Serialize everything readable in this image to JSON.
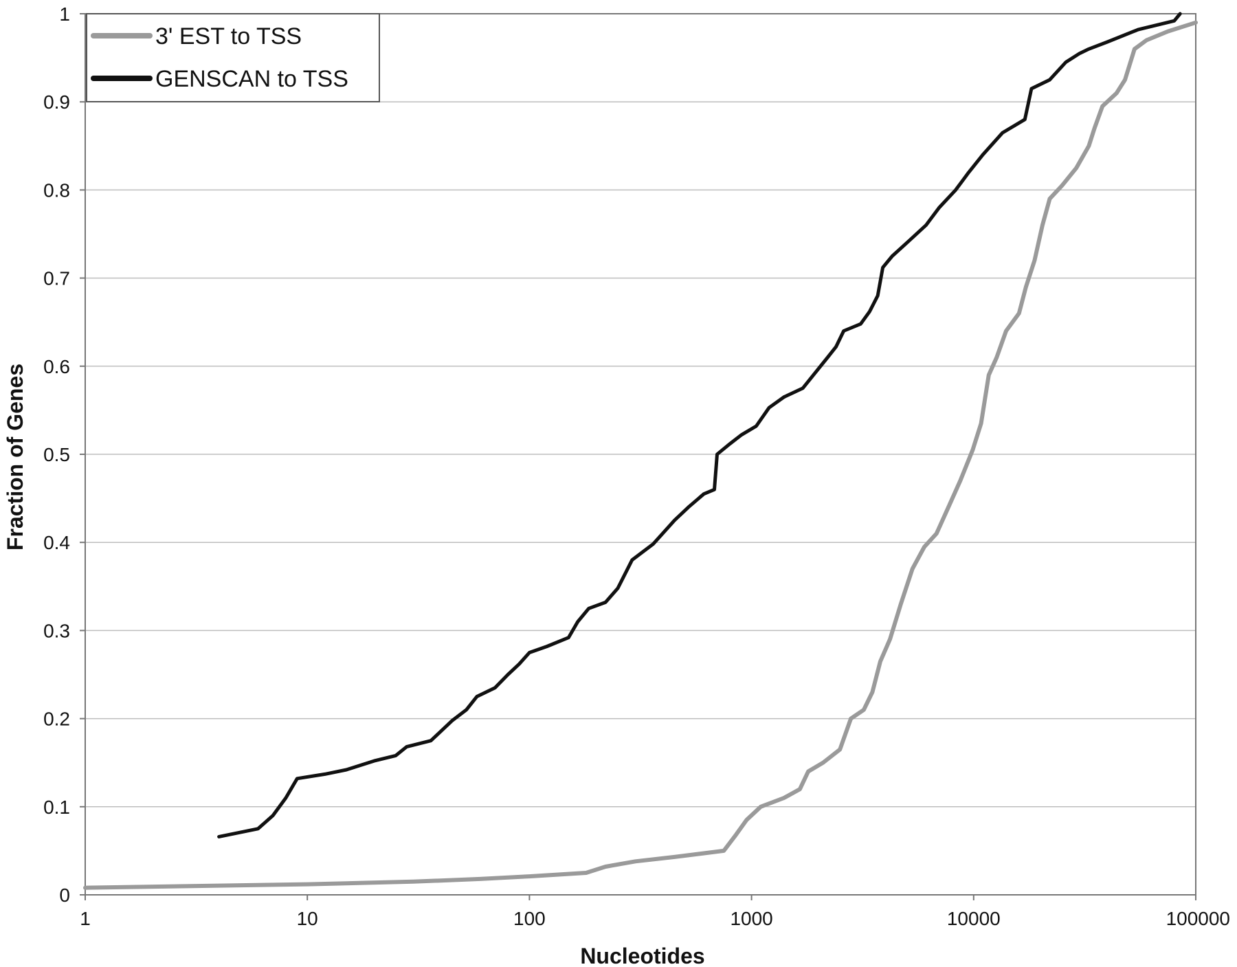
{
  "chart_data": {
    "type": "line",
    "title": "",
    "xlabel": "Nucleotides",
    "ylabel": "Fraction of Genes",
    "x_scale": "log",
    "xlim": [
      1,
      100000
    ],
    "ylim": [
      0,
      1
    ],
    "x_ticks": [
      1,
      10,
      100,
      1000,
      10000,
      100000
    ],
    "x_tick_labels": [
      "1",
      "10",
      "100",
      "1000",
      "10000",
      "100000"
    ],
    "y_ticks": [
      0,
      0.1,
      0.2,
      0.3,
      0.4,
      0.5,
      0.6,
      0.7,
      0.8,
      0.9,
      1
    ],
    "y_tick_labels": [
      "0",
      "0.1",
      "0.2",
      "0.3",
      "0.4",
      "0.5",
      "0.6",
      "0.7",
      "0.8",
      "0.9",
      "1"
    ],
    "grid": "horizontal",
    "legend_position": "top-left",
    "series": [
      {
        "name": "3' EST to TSS",
        "color": "#9a9a9a",
        "points": [
          [
            1,
            0.008
          ],
          [
            3,
            0.01
          ],
          [
            10,
            0.012
          ],
          [
            30,
            0.015
          ],
          [
            60,
            0.018
          ],
          [
            100,
            0.021
          ],
          [
            180,
            0.025
          ],
          [
            220,
            0.032
          ],
          [
            300,
            0.038
          ],
          [
            450,
            0.043
          ],
          [
            750,
            0.05
          ],
          [
            850,
            0.068
          ],
          [
            950,
            0.085
          ],
          [
            1100,
            0.1
          ],
          [
            1400,
            0.11
          ],
          [
            1650,
            0.12
          ],
          [
            1800,
            0.14
          ],
          [
            2100,
            0.15
          ],
          [
            2500,
            0.165
          ],
          [
            2800,
            0.2
          ],
          [
            3200,
            0.21
          ],
          [
            3500,
            0.23
          ],
          [
            3800,
            0.265
          ],
          [
            4200,
            0.29
          ],
          [
            4700,
            0.33
          ],
          [
            5300,
            0.37
          ],
          [
            6000,
            0.395
          ],
          [
            6800,
            0.41
          ],
          [
            7700,
            0.44
          ],
          [
            8700,
            0.47
          ],
          [
            9900,
            0.505
          ],
          [
            10800,
            0.535
          ],
          [
            11700,
            0.59
          ],
          [
            12700,
            0.61
          ],
          [
            14000,
            0.64
          ],
          [
            16000,
            0.66
          ],
          [
            17200,
            0.69
          ],
          [
            18800,
            0.72
          ],
          [
            20400,
            0.76
          ],
          [
            22000,
            0.79
          ],
          [
            25000,
            0.805
          ],
          [
            29000,
            0.825
          ],
          [
            33000,
            0.85
          ],
          [
            35000,
            0.87
          ],
          [
            38000,
            0.895
          ],
          [
            44000,
            0.91
          ],
          [
            48000,
            0.925
          ],
          [
            53000,
            0.96
          ],
          [
            60000,
            0.97
          ],
          [
            75000,
            0.98
          ],
          [
            100000,
            0.99
          ]
        ]
      },
      {
        "name": "GENSCAN to TSS",
        "color": "#111111",
        "points": [
          [
            4,
            0.066
          ],
          [
            6,
            0.075
          ],
          [
            7,
            0.09
          ],
          [
            8,
            0.11
          ],
          [
            9,
            0.132
          ],
          [
            12,
            0.137
          ],
          [
            15,
            0.142
          ],
          [
            20,
            0.152
          ],
          [
            25,
            0.158
          ],
          [
            28,
            0.168
          ],
          [
            36,
            0.175
          ],
          [
            45,
            0.198
          ],
          [
            52,
            0.21
          ],
          [
            58,
            0.225
          ],
          [
            70,
            0.235
          ],
          [
            80,
            0.25
          ],
          [
            90,
            0.262
          ],
          [
            100,
            0.275
          ],
          [
            120,
            0.282
          ],
          [
            150,
            0.292
          ],
          [
            165,
            0.31
          ],
          [
            185,
            0.325
          ],
          [
            220,
            0.332
          ],
          [
            250,
            0.348
          ],
          [
            290,
            0.38
          ],
          [
            360,
            0.398
          ],
          [
            450,
            0.425
          ],
          [
            520,
            0.44
          ],
          [
            610,
            0.455
          ],
          [
            680,
            0.46
          ],
          [
            700,
            0.5
          ],
          [
            800,
            0.512
          ],
          [
            900,
            0.522
          ],
          [
            1050,
            0.532
          ],
          [
            1200,
            0.553
          ],
          [
            1400,
            0.565
          ],
          [
            1700,
            0.575
          ],
          [
            1900,
            0.59
          ],
          [
            2200,
            0.61
          ],
          [
            2400,
            0.622
          ],
          [
            2600,
            0.64
          ],
          [
            3100,
            0.648
          ],
          [
            3400,
            0.662
          ],
          [
            3700,
            0.68
          ],
          [
            3900,
            0.712
          ],
          [
            4300,
            0.725
          ],
          [
            5100,
            0.742
          ],
          [
            6100,
            0.76
          ],
          [
            7000,
            0.78
          ],
          [
            8300,
            0.8
          ],
          [
            9500,
            0.82
          ],
          [
            11000,
            0.84
          ],
          [
            13500,
            0.865
          ],
          [
            17000,
            0.88
          ],
          [
            18200,
            0.915
          ],
          [
            22000,
            0.925
          ],
          [
            26000,
            0.945
          ],
          [
            30000,
            0.955
          ],
          [
            33000,
            0.96
          ],
          [
            40000,
            0.968
          ],
          [
            55000,
            0.982
          ],
          [
            80000,
            0.992
          ],
          [
            85000,
            1.0
          ]
        ]
      }
    ]
  }
}
